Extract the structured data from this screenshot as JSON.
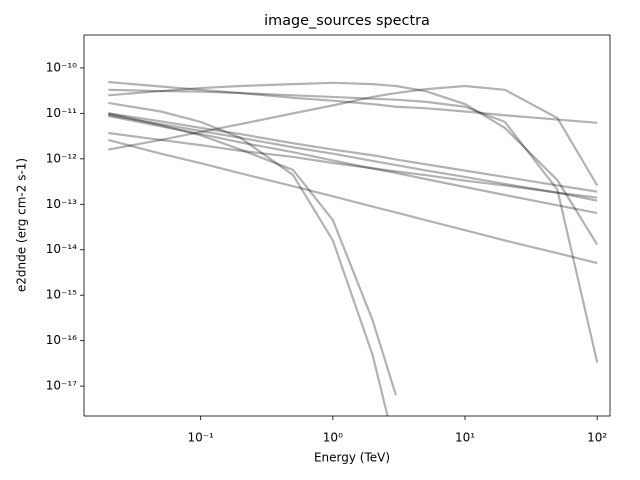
{
  "chart_data": {
    "type": "line",
    "title": "image_sources spectra",
    "x_label": "Energy (TeV)",
    "y_label": "e2dnde (erg cm-2 s-1)",
    "x_scale": "log",
    "y_scale": "log",
    "grid": false,
    "alpha": 0.3,
    "xlim": [
      0.0131,
      125
    ],
    "ylim": [
      2.2e-18,
      5.3e-10
    ],
    "xticks": [
      {
        "value": 0.1,
        "label": "10⁻¹"
      },
      {
        "value": 1,
        "label": "10⁰"
      },
      {
        "value": 10,
        "label": "10¹"
      },
      {
        "value": 100,
        "label": "10²"
      }
    ],
    "yticks": [
      {
        "value": 1e-17,
        "label": "10⁻¹⁷"
      },
      {
        "value": 1e-16,
        "label": "10⁻¹⁶"
      },
      {
        "value": 1e-15,
        "label": "10⁻¹⁵"
      },
      {
        "value": 1e-14,
        "label": "10⁻¹⁴"
      },
      {
        "value": 1e-13,
        "label": "10⁻¹³"
      },
      {
        "value": 1e-12,
        "label": "10⁻¹²"
      },
      {
        "value": 1e-11,
        "label": "10⁻¹¹"
      },
      {
        "value": 1e-10,
        "label": "10⁻¹⁰"
      }
    ],
    "x": [
      0.02,
      0.05,
      0.1,
      0.2,
      0.5,
      1,
      2,
      3,
      5,
      10,
      20,
      50,
      100
    ],
    "series": [
      {
        "color": "#000000",
        "values": [
          4.9e-11,
          3.9e-11,
          3.3e-11,
          2.8e-11,
          2.2e-11,
          1.9e-11,
          1.6e-11,
          1.4e-11,
          1.3e-11,
          1.1e-11,
          9.1e-12,
          7.3e-12,
          6.2e-12
        ]
      },
      {
        "color": "#000000",
        "values": [
          3.3e-11,
          3.1e-11,
          3e-11,
          2.8e-11,
          2.5e-11,
          2.3e-11,
          2.1e-11,
          2e-11,
          1.8e-11,
          1.4e-11,
          6.5e-12,
          2.1e-13,
          3.3e-17
        ]
      },
      {
        "color": "#000000",
        "values": [
          2.5e-11,
          3.1e-11,
          3.6e-11,
          4e-11,
          4.4e-11,
          4.7e-11,
          4.4e-11,
          4e-11,
          3.1e-11,
          1.6e-11,
          4.8e-12,
          3.4e-13,
          1.3e-14
        ]
      },
      {
        "color": "#000000",
        "values": [
          1.6e-12,
          2.6e-12,
          3.9e-12,
          5.8e-12,
          1e-11,
          1.5e-11,
          2.3e-11,
          2.8e-11,
          3.4e-11,
          4e-11,
          3.3e-11,
          7.9e-12,
          2.6e-13
        ]
      },
      {
        "color": "#000000",
        "values": [
          1.7e-11,
          1.1e-11,
          6.5e-12,
          2.9e-12,
          4.4e-13,
          1.6e-14,
          4.8e-17,
          3.9e-19,
          null,
          null,
          null,
          null,
          null
        ]
      },
      {
        "color": "#000000",
        "values": [
          1e-11,
          5.5e-12,
          3.3e-12,
          1.6e-12,
          5.7e-13,
          4.5e-14,
          2.8e-16,
          6.3e-18,
          null,
          null,
          null,
          null,
          null
        ]
      },
      {
        "color": "#000000",
        "values": [
          1e-11,
          6.7e-12,
          4.8e-12,
          3.5e-12,
          2.2e-12,
          1.6e-12,
          1.2e-12,
          9.7e-13,
          7.6e-13,
          5.5e-13,
          4e-13,
          2.6e-13,
          1.9e-13
        ]
      },
      {
        "color": "#000000",
        "values": [
          9.2e-12,
          5.8e-12,
          4.1e-12,
          2.9e-12,
          1.8e-12,
          1.3e-12,
          9e-13,
          7.3e-13,
          5.6e-13,
          4e-13,
          2.8e-13,
          1.8e-13,
          1.2e-13
        ]
      },
      {
        "color": "#000000",
        "values": [
          3.7e-12,
          2.6e-12,
          2e-12,
          1.5e-12,
          1.1e-12,
          8.1e-13,
          6.2e-13,
          5.3e-13,
          4.4e-13,
          3.3e-13,
          2.6e-13,
          1.8e-13,
          1.4e-13
        ]
      },
      {
        "color": "#000000",
        "values": [
          2.6e-12,
          1.3e-12,
          8e-13,
          4.8e-13,
          2.5e-13,
          1.5e-13,
          8.9e-14,
          6.6e-14,
          4.5e-14,
          2.7e-14,
          1.6e-14,
          8.4e-15,
          5.1e-15
        ]
      },
      {
        "color": "#000000",
        "values": [
          8.8e-12,
          5.2e-12,
          3.5e-12,
          2.3e-12,
          1.4e-12,
          9.2e-13,
          6.1e-13,
          4.9e-13,
          3.6e-13,
          2.4e-13,
          1.6e-13,
          9.5e-14,
          6.4e-14
        ]
      }
    ]
  }
}
